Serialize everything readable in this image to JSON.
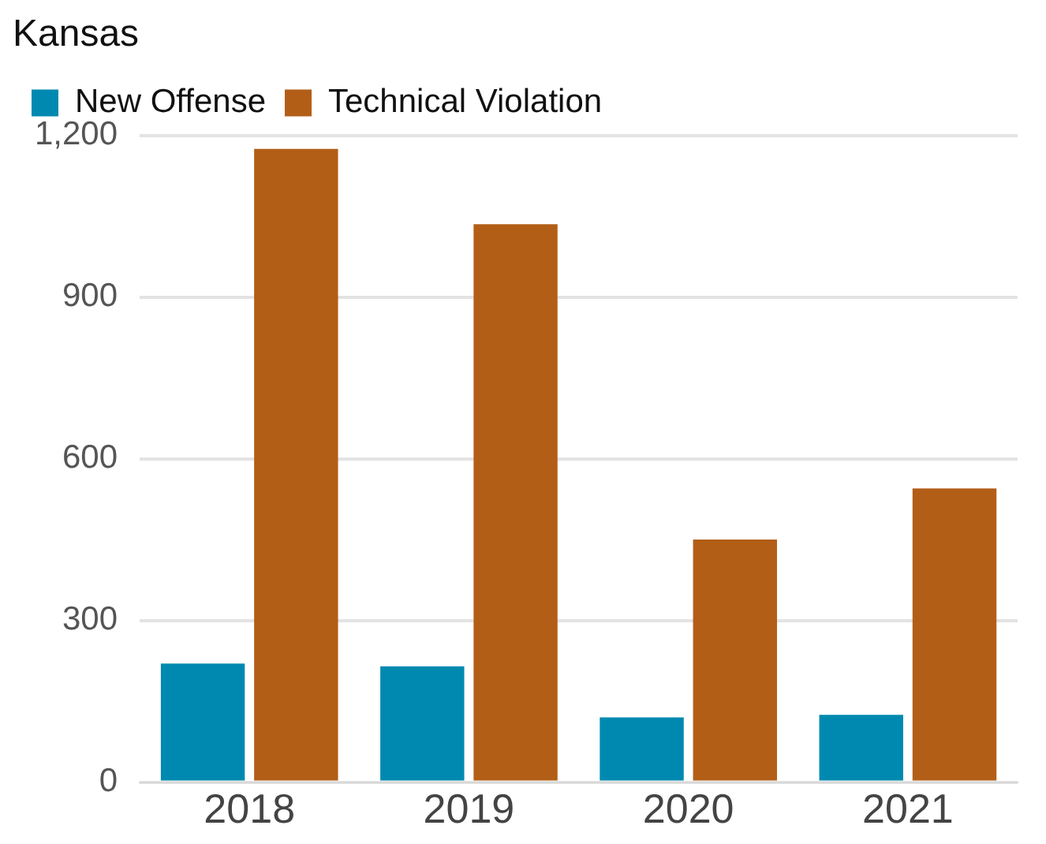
{
  "chart_data": {
    "type": "bar",
    "title": "Kansas",
    "categories": [
      "2018",
      "2019",
      "2020",
      "2021"
    ],
    "series": [
      {
        "name": "New Offense",
        "color": "#0089b0",
        "values": [
          220,
          215,
          120,
          125
        ]
      },
      {
        "name": "Technical Violation",
        "color": "#b35e17",
        "values": [
          1175,
          1035,
          450,
          545
        ]
      }
    ],
    "ylim": [
      0,
      1200
    ],
    "yticks": [
      0,
      {
        "value": 300,
        "label": "300"
      },
      {
        "value": 600,
        "label": "600"
      },
      {
        "value": 900,
        "label": "900"
      },
      {
        "value": 1200,
        "label": "1,200"
      }
    ],
    "grid": "y",
    "legend": "top left"
  }
}
